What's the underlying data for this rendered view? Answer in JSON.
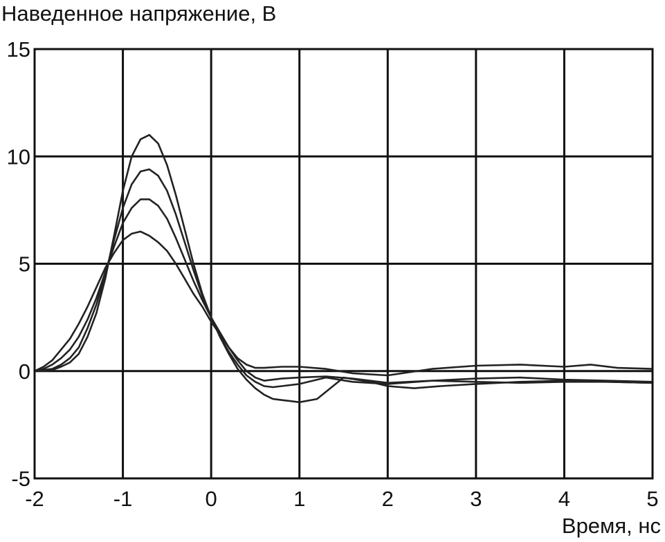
{
  "chart_data": {
    "type": "line",
    "title": "",
    "ylabel": "Наведенное напряжение, В",
    "xlabel": "Время, нс",
    "xlim": [
      -2,
      5
    ],
    "ylim": [
      -5,
      15
    ],
    "xticks": [
      -2,
      -1,
      0,
      1,
      2,
      3,
      4,
      5
    ],
    "yticks": [
      -5,
      0,
      5,
      10,
      15
    ],
    "xtick_labels": [
      "-2",
      "-1",
      "0",
      "1",
      "2",
      "3",
      "4",
      "5"
    ],
    "ytick_labels": [
      "-5",
      "0",
      "5",
      "10",
      "15"
    ],
    "grid": true,
    "legend": "none",
    "series": [
      {
        "x": [
          -2.0,
          -1.9,
          -1.8,
          -1.7,
          -1.6,
          -1.5,
          -1.4,
          -1.3,
          -1.2,
          -1.1,
          -1.0,
          -0.9,
          -0.8,
          -0.7,
          -0.6,
          -0.5,
          -0.4,
          -0.3,
          -0.2,
          -0.1,
          0.0,
          0.1,
          0.2,
          0.3,
          0.4,
          0.5,
          0.6,
          0.7,
          0.8,
          0.9,
          1.0,
          1.2,
          1.5,
          1.8,
          2.0,
          2.3,
          2.6,
          3.0,
          3.5,
          4.0,
          4.5,
          5.0
        ],
        "y": [
          0.0,
          0.0,
          0.05,
          0.2,
          0.4,
          0.8,
          1.6,
          2.7,
          4.3,
          6.3,
          8.4,
          10.0,
          10.8,
          11.0,
          10.6,
          9.6,
          8.2,
          6.6,
          5.0,
          3.6,
          2.5,
          1.6,
          0.8,
          0.1,
          -0.4,
          -0.8,
          -1.1,
          -1.3,
          -1.35,
          -1.4,
          -1.45,
          -1.3,
          -0.3,
          -0.5,
          -0.7,
          -0.8,
          -0.7,
          -0.6,
          -0.5,
          -0.45,
          -0.5,
          -0.55
        ]
      },
      {
        "x": [
          -2.0,
          -1.9,
          -1.8,
          -1.7,
          -1.6,
          -1.5,
          -1.4,
          -1.3,
          -1.2,
          -1.1,
          -1.0,
          -0.9,
          -0.8,
          -0.7,
          -0.6,
          -0.5,
          -0.4,
          -0.3,
          -0.2,
          -0.1,
          0.0,
          0.1,
          0.2,
          0.3,
          0.4,
          0.5,
          0.6,
          0.7,
          0.8,
          1.0,
          1.3,
          1.6,
          2.0,
          2.5,
          3.0,
          3.5,
          4.0,
          4.5,
          5.0
        ],
        "y": [
          0.0,
          0.05,
          0.1,
          0.3,
          0.6,
          1.1,
          2.0,
          3.1,
          4.5,
          6.1,
          7.6,
          8.7,
          9.3,
          9.4,
          9.1,
          8.4,
          7.3,
          6.0,
          4.7,
          3.5,
          2.5,
          1.6,
          0.9,
          0.3,
          -0.2,
          -0.5,
          -0.7,
          -0.75,
          -0.7,
          -0.6,
          -0.3,
          -0.5,
          -0.6,
          -0.45,
          -0.35,
          -0.3,
          -0.4,
          -0.45,
          -0.5
        ]
      },
      {
        "x": [
          -2.0,
          -1.9,
          -1.8,
          -1.7,
          -1.6,
          -1.5,
          -1.4,
          -1.3,
          -1.2,
          -1.1,
          -1.0,
          -0.9,
          -0.8,
          -0.7,
          -0.6,
          -0.5,
          -0.4,
          -0.3,
          -0.2,
          -0.1,
          0.0,
          0.1,
          0.2,
          0.3,
          0.4,
          0.5,
          0.6,
          0.8,
          1.0,
          1.3,
          1.6,
          2.0,
          2.5,
          3.0,
          3.5,
          4.0,
          4.5,
          5.0
        ],
        "y": [
          0.0,
          0.1,
          0.3,
          0.6,
          1.0,
          1.6,
          2.4,
          3.4,
          4.6,
          5.8,
          6.9,
          7.6,
          8.0,
          8.0,
          7.7,
          7.1,
          6.2,
          5.2,
          4.2,
          3.3,
          2.5,
          1.8,
          1.1,
          0.5,
          0.0,
          -0.3,
          -0.45,
          -0.35,
          -0.3,
          -0.25,
          -0.35,
          -0.55,
          -0.45,
          -0.5,
          -0.55,
          -0.5,
          -0.5,
          -0.55
        ]
      },
      {
        "x": [
          -2.0,
          -1.9,
          -1.8,
          -1.7,
          -1.6,
          -1.5,
          -1.4,
          -1.3,
          -1.2,
          -1.1,
          -1.0,
          -0.9,
          -0.8,
          -0.7,
          -0.6,
          -0.5,
          -0.4,
          -0.3,
          -0.2,
          -0.1,
          0.0,
          0.1,
          0.2,
          0.3,
          0.4,
          0.5,
          0.6,
          0.8,
          1.0,
          1.3,
          1.6,
          2.0,
          2.5,
          3.0,
          3.5,
          4.0,
          4.3,
          4.6,
          5.0
        ],
        "y": [
          0.0,
          0.2,
          0.5,
          1.0,
          1.5,
          2.2,
          3.0,
          3.9,
          4.8,
          5.5,
          6.1,
          6.4,
          6.5,
          6.3,
          6.0,
          5.6,
          5.0,
          4.3,
          3.6,
          3.0,
          2.3,
          1.7,
          1.1,
          0.6,
          0.3,
          0.15,
          0.15,
          0.2,
          0.2,
          0.1,
          -0.1,
          -0.2,
          0.1,
          0.25,
          0.3,
          0.2,
          0.3,
          0.15,
          0.1
        ]
      }
    ]
  }
}
